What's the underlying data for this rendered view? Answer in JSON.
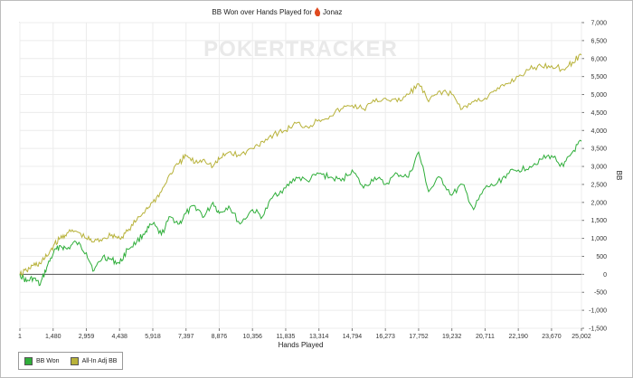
{
  "chart_data": {
    "type": "line",
    "title": "BB Won over Hands Played for",
    "player_name": "Jonaz",
    "watermark": "POKERTRACKER",
    "xlabel": "Hands Played",
    "ylabel": "BB",
    "x_ticks": [
      "1",
      "1,480",
      "2,959",
      "4,438",
      "5,918",
      "7,397",
      "8,876",
      "10,356",
      "11,835",
      "13,314",
      "14,794",
      "16,273",
      "17,752",
      "19,232",
      "20,711",
      "22,190",
      "23,670",
      "25,002"
    ],
    "y_ticks": [
      "7,000",
      "6,500",
      "6,000",
      "5,500",
      "5,000",
      "4,500",
      "4,000",
      "3,500",
      "3,000",
      "2,500",
      "2,000",
      "1,500",
      "1,000",
      "500",
      "0",
      "-500",
      "-1,000",
      "-1,500"
    ],
    "xlim": [
      1,
      25002
    ],
    "ylim": [
      -1500,
      7000
    ],
    "grid": true,
    "legend_position": "bottom-left",
    "series": [
      {
        "name": "BB Won",
        "color": "#2fae3a",
        "x": [
          1,
          300,
          600,
          900,
          1200,
          1500,
          1800,
          2100,
          2500,
          2959,
          3300,
          3700,
          4100,
          4438,
          4800,
          5200,
          5600,
          5918,
          6300,
          6700,
          7100,
          7397,
          7800,
          8200,
          8600,
          8876,
          9300,
          9800,
          10356,
          10800,
          11300,
          11835,
          12300,
          12800,
          13314,
          13800,
          14300,
          14794,
          15300,
          15800,
          16273,
          16800,
          17300,
          17752,
          18200,
          18700,
          19232,
          19700,
          20200,
          20711,
          21200,
          21700,
          22190,
          22700,
          23200,
          23670,
          24200,
          24600,
          25002
        ],
        "y": [
          0,
          -200,
          -100,
          -300,
          200,
          600,
          800,
          700,
          900,
          600,
          100,
          500,
          400,
          300,
          700,
          900,
          1200,
          1400,
          1100,
          1600,
          1400,
          1700,
          1900,
          1600,
          2000,
          1700,
          1900,
          1400,
          1800,
          1600,
          2200,
          2400,
          2700,
          2600,
          2800,
          2700,
          2600,
          2900,
          2400,
          2700,
          2500,
          2800,
          2700,
          3400,
          2300,
          2700,
          2200,
          2500,
          1800,
          2400,
          2500,
          2800,
          2900,
          3000,
          3200,
          3300,
          3000,
          3400,
          3700
        ]
      },
      {
        "name": "All-In Adj BB",
        "color": "#b8b23a",
        "x": [
          1,
          300,
          600,
          900,
          1200,
          1500,
          1800,
          2100,
          2500,
          2959,
          3300,
          3700,
          4100,
          4438,
          4800,
          5200,
          5600,
          5918,
          6300,
          6700,
          7100,
          7397,
          7800,
          8200,
          8600,
          8876,
          9300,
          9800,
          10356,
          10800,
          11300,
          11835,
          12300,
          12800,
          13314,
          13800,
          14300,
          14794,
          15300,
          15800,
          16273,
          16800,
          17300,
          17752,
          18200,
          18700,
          19232,
          19700,
          20200,
          20711,
          21200,
          21700,
          22190,
          22700,
          23200,
          23670,
          24200,
          24600,
          25002
        ],
        "y": [
          0,
          100,
          250,
          300,
          500,
          800,
          1000,
          1150,
          1200,
          1000,
          900,
          1000,
          1100,
          1000,
          1200,
          1500,
          1800,
          2000,
          2300,
          2800,
          3100,
          3300,
          3100,
          3200,
          3000,
          3200,
          3400,
          3300,
          3500,
          3700,
          3900,
          4000,
          4200,
          4100,
          4300,
          4400,
          4600,
          4700,
          4600,
          4800,
          4900,
          4800,
          5000,
          5300,
          4800,
          5100,
          5000,
          4600,
          4800,
          4900,
          5100,
          5300,
          5500,
          5700,
          5800,
          5800,
          5700,
          5900,
          6100
        ]
      }
    ]
  }
}
